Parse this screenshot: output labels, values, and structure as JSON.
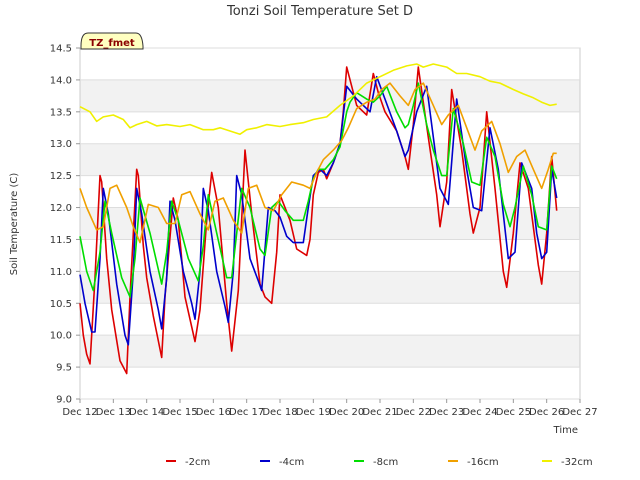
{
  "chart_data": {
    "type": "line",
    "title": "Tonzi Soil Temperature Set D",
    "xlabel": "Time",
    "ylabel": "Soil Temperature (C)",
    "badge": "TZ_fmet",
    "xlim": [
      12,
      27
    ],
    "ylim": [
      9.0,
      14.5
    ],
    "x_ticks": [
      12,
      13,
      14,
      15,
      16,
      17,
      18,
      19,
      20,
      21,
      22,
      23,
      24,
      25,
      26,
      27
    ],
    "x_tick_labels": [
      "Dec 12",
      "Dec 13",
      "Dec 14",
      "Dec 15",
      "Dec 16",
      "Dec 17",
      "Dec 18",
      "Dec 19",
      "Dec 20",
      "Dec 21",
      "Dec 22",
      "Dec 23",
      "Dec 24",
      "Dec 25",
      "Dec 26",
      "Dec 27"
    ],
    "y_ticks": [
      9.0,
      9.5,
      10.0,
      10.5,
      11.0,
      11.5,
      12.0,
      12.5,
      13.0,
      13.5,
      14.0,
      14.5
    ],
    "y_tick_labels": [
      "9.0",
      "9.5",
      "10.0",
      "10.5",
      "11.0",
      "11.5",
      "12.0",
      "12.5",
      "13.0",
      "13.5",
      "14.0",
      "14.5"
    ],
    "legend_position": "bottom-center",
    "series": [
      {
        "name": "-2cm",
        "color": "#dd0000",
        "x": [
          12.0,
          12.1,
          12.2,
          12.3,
          12.45,
          12.6,
          12.65,
          12.8,
          12.95,
          13.2,
          13.4,
          13.5,
          13.7,
          13.75,
          13.9,
          14.0,
          14.2,
          14.45,
          14.55,
          14.8,
          14.95,
          15.15,
          15.45,
          15.6,
          15.8,
          15.95,
          16.15,
          16.4,
          16.55,
          16.75,
          16.95,
          17.15,
          17.4,
          17.55,
          17.75,
          17.9,
          18.0,
          18.3,
          18.5,
          18.8,
          18.9,
          19.0,
          19.15,
          19.3,
          19.4,
          19.6,
          19.8,
          19.9,
          20.0,
          20.3,
          20.5,
          20.6,
          20.8,
          20.95,
          21.15,
          21.5,
          21.75,
          21.85,
          22.0,
          22.15,
          22.45,
          22.7,
          22.8,
          23.0,
          23.15,
          23.45,
          23.7,
          23.8,
          24.0,
          24.2,
          24.45,
          24.7,
          24.8,
          25.0,
          25.2,
          25.45,
          25.75,
          25.85,
          26.0,
          26.15,
          26.3
        ],
        "values": [
          10.5,
          10.0,
          9.7,
          9.55,
          10.9,
          12.5,
          12.4,
          11.2,
          10.4,
          9.6,
          9.4,
          10.6,
          12.6,
          12.5,
          11.4,
          10.9,
          10.3,
          9.65,
          10.6,
          12.15,
          11.8,
          10.6,
          9.9,
          10.4,
          11.8,
          12.55,
          12.0,
          10.5,
          9.75,
          10.7,
          12.9,
          11.9,
          10.8,
          10.6,
          10.5,
          11.3,
          12.2,
          11.8,
          11.35,
          11.25,
          11.5,
          12.2,
          12.55,
          12.6,
          12.45,
          12.7,
          13.0,
          13.5,
          14.2,
          13.6,
          13.5,
          13.45,
          14.1,
          13.8,
          13.5,
          13.2,
          12.8,
          12.6,
          13.3,
          14.2,
          13.1,
          12.2,
          11.7,
          12.4,
          13.85,
          12.9,
          11.9,
          11.6,
          12.0,
          13.5,
          12.3,
          11.0,
          10.75,
          11.6,
          12.7,
          12.3,
          11.1,
          10.8,
          11.6,
          12.8,
          11.95
        ]
      },
      {
        "name": "-4cm",
        "color": "#0000cc",
        "x": [
          12.0,
          12.15,
          12.35,
          12.45,
          12.6,
          12.7,
          12.85,
          13.1,
          13.35,
          13.45,
          13.6,
          13.7,
          13.85,
          14.1,
          14.35,
          14.45,
          14.6,
          14.7,
          14.85,
          15.1,
          15.35,
          15.45,
          15.6,
          15.7,
          15.85,
          16.1,
          16.35,
          16.45,
          16.6,
          16.7,
          16.85,
          17.1,
          17.35,
          17.45,
          17.65,
          17.85,
          18.0,
          18.2,
          18.4,
          18.7,
          18.85,
          19.0,
          19.2,
          19.4,
          19.6,
          19.8,
          20.0,
          20.3,
          20.5,
          20.7,
          20.9,
          21.15,
          21.5,
          21.75,
          21.85,
          22.1,
          22.4,
          22.65,
          22.8,
          23.05,
          23.3,
          23.6,
          23.8,
          24.05,
          24.3,
          24.55,
          24.7,
          24.85,
          25.05,
          25.25,
          25.55,
          25.7,
          25.85,
          26.0,
          26.15,
          26.3
        ],
        "values": [
          10.95,
          10.5,
          10.05,
          10.05,
          11.2,
          12.3,
          11.9,
          10.8,
          10.0,
          9.85,
          11.0,
          12.3,
          11.9,
          11.0,
          10.4,
          10.1,
          10.9,
          12.1,
          11.8,
          11.0,
          10.5,
          10.25,
          11.0,
          12.3,
          11.95,
          11.0,
          10.45,
          10.2,
          11.0,
          12.5,
          12.2,
          11.2,
          10.85,
          10.7,
          12.0,
          11.95,
          11.85,
          11.55,
          11.45,
          11.45,
          12.0,
          12.5,
          12.6,
          12.5,
          12.7,
          13.0,
          13.9,
          13.7,
          13.6,
          13.5,
          14.05,
          13.7,
          13.2,
          12.8,
          12.9,
          13.5,
          13.9,
          12.9,
          12.3,
          12.05,
          13.7,
          12.6,
          12.0,
          11.95,
          13.25,
          12.6,
          11.9,
          11.2,
          11.3,
          12.7,
          12.3,
          11.6,
          11.2,
          11.3,
          12.6,
          12.15
        ]
      },
      {
        "name": "-8cm",
        "color": "#00dd00",
        "x": [
          12.0,
          12.2,
          12.4,
          12.6,
          12.75,
          12.95,
          13.25,
          13.5,
          13.65,
          13.8,
          14.1,
          14.45,
          14.6,
          14.75,
          14.95,
          15.25,
          15.55,
          15.7,
          15.85,
          16.1,
          16.4,
          16.55,
          16.7,
          16.85,
          17.1,
          17.4,
          17.55,
          17.75,
          17.95,
          18.15,
          18.4,
          18.7,
          18.85,
          19.0,
          19.15,
          19.35,
          19.6,
          19.8,
          20.0,
          20.1,
          20.3,
          20.6,
          20.8,
          21.0,
          21.2,
          21.5,
          21.75,
          21.85,
          22.0,
          22.15,
          22.4,
          22.6,
          22.85,
          23.0,
          23.2,
          23.5,
          23.75,
          24.0,
          24.2,
          24.45,
          24.7,
          24.9,
          25.05,
          25.3,
          25.55,
          25.75,
          26.0,
          26.15,
          26.3
        ],
        "values": [
          11.55,
          11.0,
          10.7,
          11.3,
          12.1,
          11.6,
          10.9,
          10.6,
          11.2,
          12.15,
          11.6,
          10.8,
          11.3,
          12.1,
          11.8,
          11.2,
          10.85,
          11.4,
          12.2,
          11.6,
          10.9,
          10.9,
          11.6,
          12.3,
          12.0,
          11.35,
          11.25,
          12.0,
          12.1,
          11.95,
          11.8,
          11.8,
          12.1,
          12.45,
          12.6,
          12.6,
          12.75,
          12.95,
          13.5,
          13.65,
          13.8,
          13.7,
          13.65,
          13.75,
          13.9,
          13.5,
          13.25,
          13.3,
          13.6,
          13.95,
          13.3,
          12.9,
          12.5,
          12.5,
          13.55,
          13.0,
          12.4,
          12.35,
          13.1,
          12.8,
          12.05,
          11.7,
          12.0,
          12.65,
          12.2,
          11.7,
          11.65,
          12.65,
          12.45
        ]
      },
      {
        "name": "-16cm",
        "color": "#f0a000",
        "x": [
          12.0,
          12.2,
          12.5,
          12.7,
          12.9,
          13.1,
          13.4,
          13.6,
          13.8,
          14.05,
          14.35,
          14.6,
          14.85,
          15.05,
          15.3,
          15.6,
          15.85,
          16.05,
          16.3,
          16.6,
          16.85,
          17.05,
          17.3,
          17.55,
          17.8,
          18.05,
          18.35,
          18.7,
          18.9,
          19.1,
          19.3,
          19.6,
          19.85,
          20.05,
          20.3,
          20.6,
          20.85,
          21.05,
          21.3,
          21.6,
          21.85,
          22.05,
          22.3,
          22.6,
          22.85,
          23.05,
          23.35,
          23.6,
          23.85,
          24.05,
          24.35,
          24.6,
          24.85,
          25.1,
          25.35,
          25.6,
          25.85,
          26.05,
          26.2,
          26.3
        ],
        "values": [
          12.3,
          12.0,
          11.65,
          11.7,
          12.3,
          12.35,
          12.0,
          11.7,
          11.45,
          12.05,
          12.0,
          11.75,
          11.75,
          12.2,
          12.25,
          11.9,
          11.65,
          12.1,
          12.15,
          11.8,
          11.6,
          12.3,
          12.35,
          12.0,
          11.95,
          12.2,
          12.4,
          12.35,
          12.3,
          12.55,
          12.75,
          12.9,
          13.05,
          13.25,
          13.55,
          13.65,
          13.7,
          13.85,
          13.95,
          13.75,
          13.6,
          13.85,
          13.95,
          13.6,
          13.3,
          13.45,
          13.6,
          13.25,
          12.9,
          13.2,
          13.35,
          13.0,
          12.55,
          12.8,
          12.9,
          12.6,
          12.3,
          12.6,
          12.85,
          12.85
        ]
      },
      {
        "name": "-32cm",
        "color": "#f0f000",
        "x": [
          12.0,
          12.3,
          12.5,
          12.7,
          13.0,
          13.3,
          13.5,
          13.7,
          14.0,
          14.3,
          14.6,
          15.0,
          15.3,
          15.7,
          16.0,
          16.2,
          16.5,
          16.8,
          17.0,
          17.3,
          17.6,
          18.0,
          18.3,
          18.7,
          19.0,
          19.4,
          19.8,
          20.2,
          20.6,
          21.0,
          21.4,
          21.8,
          22.1,
          22.3,
          22.6,
          23.0,
          23.3,
          23.6,
          24.0,
          24.3,
          24.6,
          25.0,
          25.3,
          25.6,
          25.85,
          26.1,
          26.3
        ],
        "values": [
          13.58,
          13.5,
          13.35,
          13.42,
          13.45,
          13.38,
          13.25,
          13.3,
          13.35,
          13.28,
          13.3,
          13.27,
          13.3,
          13.22,
          13.22,
          13.25,
          13.2,
          13.15,
          13.22,
          13.25,
          13.3,
          13.27,
          13.3,
          13.33,
          13.38,
          13.42,
          13.6,
          13.75,
          13.95,
          14.05,
          14.15,
          14.22,
          14.25,
          14.2,
          14.25,
          14.2,
          14.1,
          14.1,
          14.05,
          13.98,
          13.95,
          13.85,
          13.78,
          13.72,
          13.65,
          13.6,
          13.62
        ]
      }
    ]
  }
}
